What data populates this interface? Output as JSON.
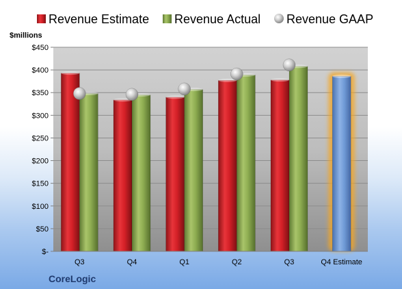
{
  "chart_data": {
    "type": "bar",
    "ylabel": "$millions",
    "ylim": [
      0,
      450
    ],
    "ytick_step": 50,
    "y_tick_labels": [
      "$-",
      "$50",
      "$100",
      "$150",
      "$200",
      "$250",
      "$300",
      "$350",
      "$400",
      "$450"
    ],
    "categories": [
      "Q3",
      "Q4",
      "Q1",
      "Q2",
      "Q3",
      "Q4 Estimate"
    ],
    "series": [
      {
        "name": "Revenue Estimate",
        "kind": "bar",
        "color": "#d42027",
        "values": [
          393,
          334,
          340,
          377,
          378,
          null
        ]
      },
      {
        "name": "Revenue Actual",
        "kind": "bar",
        "color": "#8fae52",
        "values": [
          348,
          345,
          357,
          389,
          408,
          null
        ]
      },
      {
        "name": "Revenue GAAP",
        "kind": "marker",
        "color": "#bfbfbf",
        "values": [
          348,
          346,
          358,
          391,
          411,
          null
        ]
      }
    ],
    "forecast": {
      "category_index": 5,
      "value": 386,
      "color": "#6f9ad6",
      "glow_color": "#f5a623"
    },
    "legend_position": "top",
    "grid": true,
    "company": "CoreLogic"
  }
}
